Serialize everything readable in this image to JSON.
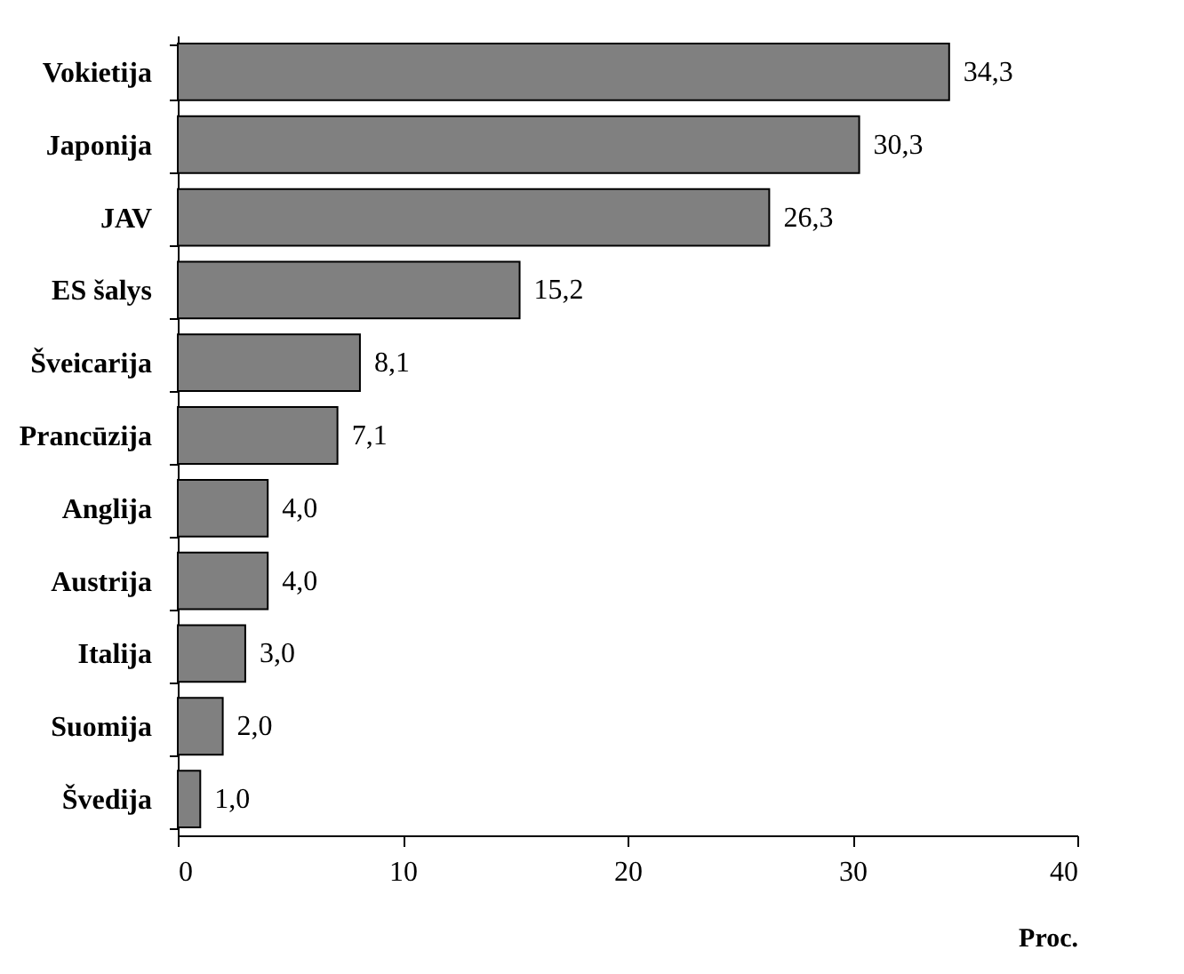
{
  "chart_data": {
    "type": "bar",
    "orientation": "horizontal",
    "xlabel": "Proc.",
    "categories": [
      "Vokietija",
      "Japonija",
      "JAV",
      "ES šalys",
      "Šveicarija",
      "Prancūzija",
      "Anglija",
      "Austrija",
      "Italija",
      "Suomija",
      "Švedija"
    ],
    "values": [
      34.3,
      30.3,
      26.3,
      15.2,
      8.1,
      7.1,
      4.0,
      4.0,
      3.0,
      2.0,
      1.0
    ],
    "value_labels": [
      "34,3",
      "30,3",
      "26,3",
      "15,2",
      "8,1",
      "7,1",
      "4,0",
      "4,0",
      "3,0",
      "2,0",
      "1,0"
    ],
    "color": "#808080",
    "xlim": [
      0,
      40
    ],
    "xticks": [
      0,
      10,
      20,
      30,
      40
    ],
    "grid": false
  }
}
